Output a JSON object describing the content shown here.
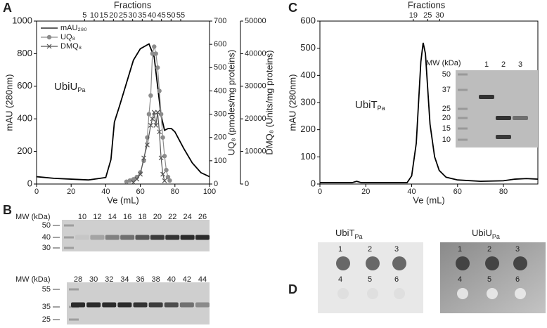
{
  "chart_data": [
    {
      "type": "line",
      "panel": "A",
      "xlabel": "Ve (mL)",
      "ylabel": "mAU (280nm)",
      "y2label": "UQ₈ (pmoles/mg proteins)",
      "y3label": "DMQ₈ (Units/mg proteins)",
      "x2label": "Fractions",
      "annotation": {
        "text": "UbiU",
        "sub": "Pa"
      },
      "xlim": [
        0,
        100
      ],
      "xticks": [
        0,
        20,
        40,
        60,
        80,
        100
      ],
      "ylim": [
        0,
        1000
      ],
      "yticks": [
        0,
        200,
        400,
        600,
        800,
        1000
      ],
      "y2lim": [
        0,
        700
      ],
      "y2ticks": [
        0,
        100,
        200,
        300,
        400,
        500,
        600,
        700
      ],
      "y3lim": [
        0,
        50000
      ],
      "y3ticks": [
        0,
        10000,
        20000,
        30000,
        40000,
        50000
      ],
      "x2lim": [
        -20,
        70
      ],
      "x2ticks": [
        5,
        10,
        15,
        20,
        25,
        30,
        35,
        40,
        45,
        50,
        55
      ],
      "legend": "upper left",
      "series": [
        {
          "name": "mAU₂₈₀",
          "color": "#000000",
          "marker": "none",
          "x": [
            0,
            10,
            20,
            30,
            40,
            43,
            45,
            48,
            52,
            56,
            60,
            65,
            68,
            70,
            72,
            74,
            76,
            78,
            80,
            85,
            90,
            95,
            100
          ],
          "values": [
            45,
            35,
            30,
            25,
            40,
            150,
            380,
            480,
            620,
            760,
            830,
            860,
            780,
            600,
            420,
            330,
            340,
            340,
            320,
            220,
            130,
            70,
            45
          ]
        },
        {
          "name": "UQ₈",
          "color": "#8c8c8c",
          "marker": "circle",
          "axis": "y2",
          "x": [
            52,
            54,
            56,
            58,
            60,
            62,
            64,
            65,
            66,
            67,
            68,
            69,
            70,
            71,
            72,
            73,
            74,
            75,
            76,
            77
          ],
          "values": [
            10,
            15,
            20,
            30,
            50,
            100,
            200,
            300,
            380,
            560,
            590,
            560,
            500,
            400,
            300,
            200,
            120,
            60,
            30,
            15
          ]
        },
        {
          "name": "DMQ₈",
          "color": "#555555",
          "marker": "cross",
          "axis": "y3",
          "x": [
            56,
            58,
            60,
            62,
            64,
            66,
            67,
            68,
            69,
            70,
            71,
            72,
            73,
            74
          ],
          "values": [
            500,
            1500,
            3000,
            8000,
            12000,
            18000,
            20000,
            22000,
            18000,
            22000,
            16000,
            8000,
            3000,
            1000
          ]
        }
      ]
    },
    {
      "type": "line",
      "panel": "C",
      "xlabel": "Ve (mL)",
      "ylabel": "mAU (280nm)",
      "x2label": "Fractions",
      "annotation": {
        "text": "UbiT",
        "sub": "Pa"
      },
      "xlim": [
        0,
        95
      ],
      "xticks": [
        0,
        20,
        40,
        60,
        80
      ],
      "ylim": [
        0,
        600
      ],
      "yticks": [
        0,
        100,
        200,
        300,
        400,
        500,
        600
      ],
      "x2lim": [
        -20,
        71
      ],
      "x2ticks": [
        19,
        25,
        30
      ],
      "series": [
        {
          "name": "mAU",
          "color": "#000000",
          "marker": "none",
          "x": [
            0,
            14,
            16,
            18,
            38,
            40,
            42,
            43,
            44,
            45,
            46,
            47,
            48,
            50,
            52,
            55,
            60,
            70,
            80,
            85,
            90,
            95
          ],
          "values": [
            5,
            5,
            10,
            5,
            5,
            30,
            150,
            300,
            450,
            520,
            480,
            350,
            220,
            100,
            50,
            25,
            15,
            10,
            12,
            18,
            20,
            18
          ]
        }
      ]
    }
  ],
  "panel_labels": [
    "A",
    "B",
    "C",
    "D"
  ],
  "inset_gel": {
    "mw_label": "MW (kDa)",
    "lanes": [
      "1",
      "2",
      "3"
    ],
    "markers": [
      "50",
      "37",
      "25",
      "20",
      "15",
      "10"
    ]
  },
  "gel_top": {
    "mw_label": "MW (kDa)",
    "lanes": [
      "10",
      "12",
      "14",
      "16",
      "18",
      "20",
      "22",
      "24",
      "26"
    ],
    "markers": [
      "50",
      "40",
      "30"
    ]
  },
  "gel_bottom": {
    "mw_label": "MW (kDa)",
    "lanes": [
      "28",
      "30",
      "32",
      "34",
      "36",
      "38",
      "40",
      "42",
      "44"
    ],
    "markers": [
      "55",
      "35",
      "25"
    ]
  },
  "dot_blots": [
    {
      "title": {
        "text": "UbiT",
        "sub": "Pa"
      },
      "spots": [
        "1",
        "2",
        "3",
        "4",
        "5",
        "6"
      ]
    },
    {
      "title": {
        "text": "UbiU",
        "sub": "Pa"
      },
      "spots": [
        "1",
        "2",
        "3",
        "4",
        "5",
        "6"
      ]
    }
  ]
}
